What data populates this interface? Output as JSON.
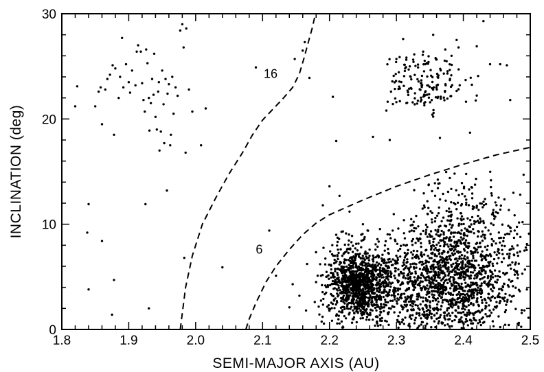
{
  "chart_data": {
    "type": "scatter",
    "title": "",
    "xlabel": "SEMI-MAJOR AXIS (AU)",
    "ylabel": "INCLINATION (deg)",
    "xlim": [
      1.8,
      2.5
    ],
    "ylim": [
      0,
      30
    ],
    "xticks": [
      1.8,
      1.9,
      2.0,
      2.1,
      2.2,
      2.3,
      2.4,
      2.5
    ],
    "xtick_labels": [
      "1.8",
      "1.9",
      "2.0",
      "2.1",
      "2.2",
      "2.3",
      "2.4",
      "2.5"
    ],
    "yticks": [
      0,
      10,
      20,
      30
    ],
    "ytick_labels": [
      "0",
      "10",
      "20",
      "30"
    ],
    "grid": false,
    "marker_color": "#000000",
    "curves": [
      {
        "label": "16",
        "style": "dashed",
        "label_at": [
          2.112,
          23.9
        ],
        "points": [
          [
            1.977,
            0
          ],
          [
            1.985,
            4
          ],
          [
            1.995,
            7
          ],
          [
            2.01,
            10
          ],
          [
            2.03,
            12.5
          ],
          [
            2.05,
            14.8
          ],
          [
            2.07,
            16.8
          ],
          [
            2.085,
            18.5
          ],
          [
            2.1,
            19.9
          ],
          [
            2.115,
            20.9
          ],
          [
            2.13,
            21.9
          ],
          [
            2.145,
            23.0
          ],
          [
            2.155,
            24.3
          ],
          [
            2.162,
            25.8
          ],
          [
            2.168,
            27.2
          ],
          [
            2.174,
            28.6
          ],
          [
            2.179,
            30
          ]
        ]
      },
      {
        "label": "6",
        "style": "dashed",
        "label_at": [
          2.095,
          7.2
        ],
        "points": [
          [
            2.075,
            0
          ],
          [
            2.08,
            1.0
          ],
          [
            2.09,
            2.5
          ],
          [
            2.105,
            4.5
          ],
          [
            2.12,
            6.0
          ],
          [
            2.14,
            7.6
          ],
          [
            2.16,
            9.0
          ],
          [
            2.18,
            10.1
          ],
          [
            2.2,
            10.9
          ],
          [
            2.25,
            12.3
          ],
          [
            2.3,
            13.6
          ],
          [
            2.35,
            14.7
          ],
          [
            2.4,
            15.7
          ],
          [
            2.45,
            16.6
          ],
          [
            2.5,
            17.3
          ]
        ]
      }
    ],
    "sparse_points": [
      [
        1.82,
        21.2
      ],
      [
        1.823,
        23.1
      ],
      [
        1.84,
        11.9
      ],
      [
        1.838,
        9.2
      ],
      [
        1.84,
        3.8
      ],
      [
        1.86,
        8.4
      ],
      [
        1.875,
        1.4
      ],
      [
        1.878,
        4.7
      ],
      [
        1.85,
        21.2
      ],
      [
        1.855,
        22.6
      ],
      [
        1.858,
        23.0
      ],
      [
        1.86,
        19.5
      ],
      [
        1.865,
        22.8
      ],
      [
        1.868,
        23.8
      ],
      [
        1.872,
        24.2
      ],
      [
        1.876,
        25.1
      ],
      [
        1.88,
        24.8
      ],
      [
        1.878,
        18.5
      ],
      [
        1.885,
        22.0
      ],
      [
        1.887,
        24.0
      ],
      [
        1.89,
        27.7
      ],
      [
        1.892,
        23.0
      ],
      [
        1.896,
        25.2
      ],
      [
        1.9,
        23.5
      ],
      [
        1.902,
        22.5
      ],
      [
        1.905,
        24.6
      ],
      [
        1.91,
        23.2
      ],
      [
        1.912,
        26.4
      ],
      [
        1.914,
        27.0
      ],
      [
        1.918,
        26.4
      ],
      [
        1.92,
        23.4
      ],
      [
        1.922,
        21.8
      ],
      [
        1.924,
        20.7
      ],
      [
        1.926,
        26.6
      ],
      [
        1.928,
        25.3
      ],
      [
        1.93,
        22.0
      ],
      [
        1.931,
        18.9
      ],
      [
        1.933,
        21.5
      ],
      [
        1.935,
        23.8
      ],
      [
        1.937,
        22.3
      ],
      [
        1.938,
        26.2
      ],
      [
        1.94,
        20.2
      ],
      [
        1.942,
        19.0
      ],
      [
        1.944,
        22.6
      ],
      [
        1.945,
        23.5
      ],
      [
        1.946,
        17.0
      ],
      [
        1.948,
        18.8
      ],
      [
        1.95,
        24.6
      ],
      [
        1.952,
        21.4
      ],
      [
        1.953,
        17.7
      ],
      [
        1.955,
        23.8
      ],
      [
        1.958,
        22.4
      ],
      [
        1.96,
        23.3
      ],
      [
        1.962,
        17.5
      ],
      [
        1.963,
        18.5
      ],
      [
        1.965,
        24.0
      ],
      [
        1.967,
        20.5
      ],
      [
        1.97,
        23.0
      ],
      [
        1.973,
        22.2
      ],
      [
        1.977,
        28.4
      ],
      [
        1.98,
        29.0
      ],
      [
        1.982,
        26.8
      ],
      [
        1.986,
        28.6
      ],
      [
        1.99,
        22.8
      ],
      [
        1.995,
        20.7
      ],
      [
        1.985,
        16.8
      ],
      [
        2.008,
        17.5
      ],
      [
        2.015,
        21.0
      ],
      [
        1.925,
        11.9
      ],
      [
        1.957,
        13.2
      ],
      [
        1.93,
        2.0
      ],
      [
        1.983,
        6.8
      ],
      [
        2.04,
        5.9
      ],
      [
        2.09,
        24.9
      ],
      [
        2.11,
        9.4
      ],
      [
        2.12,
        5.1
      ],
      [
        2.14,
        2.1
      ],
      [
        2.145,
        4.3
      ],
      [
        2.148,
        25.7
      ],
      [
        2.16,
        26.5
      ],
      [
        2.163,
        27.3
      ],
      [
        2.17,
        23.9
      ],
      [
        2.18,
        4.5
      ],
      [
        2.19,
        11.8
      ],
      [
        2.2,
        13.6
      ],
      [
        2.205,
        22.1
      ],
      [
        2.21,
        17.9
      ],
      [
        2.265,
        18.3
      ],
      [
        2.29,
        18.0
      ],
      [
        2.365,
        18.2
      ],
      [
        2.41,
        18.7
      ],
      [
        2.47,
        21.8
      ],
      [
        2.155,
        3.2
      ],
      [
        2.165,
        1.8
      ],
      [
        2.178,
        2.6
      ],
      [
        2.186,
        6.2
      ],
      [
        2.215,
        12.7
      ],
      [
        2.23,
        11.2
      ],
      [
        2.25,
        10.0
      ],
      [
        2.3,
        25.7
      ],
      [
        2.31,
        27.6
      ],
      [
        2.32,
        25.0
      ],
      [
        2.34,
        26.4
      ],
      [
        2.355,
        28.0
      ],
      [
        2.373,
        26.6
      ],
      [
        2.39,
        27.5
      ],
      [
        2.42,
        26.9
      ],
      [
        2.43,
        29.3
      ],
      [
        2.455,
        25.2
      ],
      [
        2.465,
        25.1
      ],
      [
        2.285,
        20.8
      ],
      [
        2.292,
        22.6
      ],
      [
        2.296,
        24.1
      ],
      [
        2.3,
        21.6
      ],
      [
        2.47,
        7.6
      ],
      [
        2.48,
        5.4
      ],
      [
        2.485,
        12.8
      ],
      [
        2.49,
        14.7
      ],
      [
        2.495,
        3.8
      ],
      [
        2.498,
        9.1
      ]
    ],
    "clusters": [
      {
        "cx": 2.34,
        "cy": 23.4,
        "sx": 0.034,
        "sy": 1.4,
        "n": 160,
        "xmin": 2.28,
        "xmax": 2.46,
        "ymin": 20.0,
        "ymax": 27.5
      },
      {
        "cx": 2.245,
        "cy": 4.3,
        "sx": 0.025,
        "sy": 1.8,
        "n": 1150,
        "xmin": 2.15,
        "xmax": 2.33,
        "ymin": 0.1,
        "ymax": 9.5
      },
      {
        "cx": 2.38,
        "cy": 4.3,
        "sx": 0.055,
        "sy": 2.6,
        "n": 1350,
        "xmin": 2.27,
        "xmax": 2.499,
        "ymin": 0.1,
        "ymax": 11.0
      },
      {
        "cx": 2.4,
        "cy": 9.8,
        "sx": 0.045,
        "sy": 2.2,
        "n": 260,
        "xmin": 2.32,
        "xmax": 2.499,
        "ymin": 6.0,
        "ymax": 15.3
      }
    ],
    "marker_radius": 1.7
  }
}
